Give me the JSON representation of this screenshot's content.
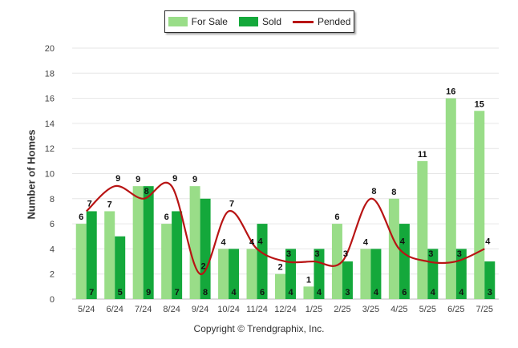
{
  "legend": {
    "for_sale": "For Sale",
    "sold": "Sold",
    "pended": "Pended"
  },
  "credit": "Copyright © Trendgraphix, Inc.",
  "colors": {
    "for_sale": "#99dd88",
    "sold": "#14a83b",
    "pended": "#b81414"
  },
  "chart_data": {
    "type": "bar",
    "title": "",
    "xlabel": "",
    "ylabel": "Number of Homes",
    "ylim": [
      0,
      20
    ],
    "yticks": [
      0,
      2,
      4,
      6,
      8,
      10,
      12,
      14,
      16,
      18,
      20
    ],
    "grid": true,
    "legend_position": "top-center",
    "categories": [
      "5/24",
      "6/24",
      "7/24",
      "8/24",
      "9/24",
      "10/24",
      "11/24",
      "12/24",
      "1/25",
      "2/25",
      "3/25",
      "4/25",
      "5/25",
      "6/25",
      "7/25"
    ],
    "series": [
      {
        "name": "For Sale",
        "type": "bar",
        "values": [
          6,
          7,
          9,
          6,
          9,
          4,
          4,
          2,
          1,
          6,
          4,
          8,
          11,
          16,
          15
        ]
      },
      {
        "name": "Sold",
        "type": "bar",
        "values": [
          7,
          5,
          9,
          7,
          8,
          4,
          6,
          4,
          4,
          3,
          4,
          6,
          4,
          4,
          3
        ]
      },
      {
        "name": "Pended",
        "type": "line",
        "values": [
          7,
          9,
          8,
          9,
          2,
          7,
          4,
          3,
          3,
          3,
          8,
          4,
          3,
          3,
          4
        ]
      }
    ]
  }
}
